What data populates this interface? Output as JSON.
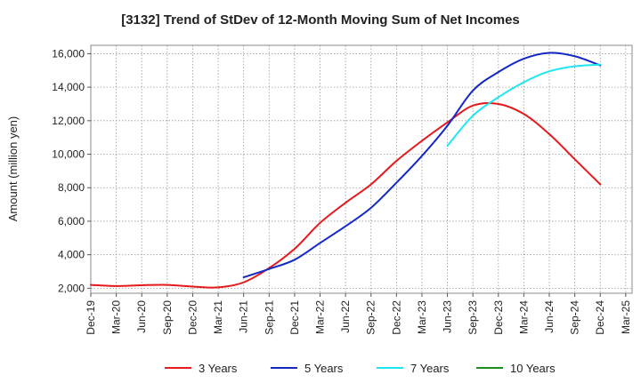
{
  "chart_data": {
    "type": "line",
    "title": "[3132]  Trend of StDev of 12-Month Moving Sum of Net Incomes",
    "xlabel": "",
    "ylabel": "Amount (million yen)",
    "ylim": [
      1700,
      16500
    ],
    "yticks": [
      2000,
      4000,
      6000,
      8000,
      10000,
      12000,
      14000,
      16000
    ],
    "ytick_labels": [
      "2,000",
      "4,000",
      "6,000",
      "8,000",
      "10,000",
      "12,000",
      "14,000",
      "16,000"
    ],
    "x_labels": [
      "Dec-19",
      "Mar-20",
      "Jun-20",
      "Sep-20",
      "Dec-20",
      "Mar-21",
      "Jun-21",
      "Sep-21",
      "Dec-21",
      "Mar-22",
      "Jun-22",
      "Sep-22",
      "Dec-22",
      "Mar-23",
      "Jun-23",
      "Sep-23",
      "Dec-23",
      "Mar-24",
      "Jun-24",
      "Sep-24",
      "Dec-24",
      "Mar-25"
    ],
    "grid": true,
    "legend_position": "bottom",
    "series": [
      {
        "name": "3 Years",
        "color": "#e41a1c",
        "x": [
          "Dec-19",
          "Mar-20",
          "Jun-20",
          "Sep-20",
          "Dec-20",
          "Mar-21",
          "Jun-21",
          "Sep-21",
          "Dec-21",
          "Mar-22",
          "Jun-22",
          "Sep-22",
          "Dec-22",
          "Mar-23",
          "Jun-23",
          "Sep-23",
          "Dec-23",
          "Mar-24",
          "Jun-24",
          "Sep-24",
          "Dec-24"
        ],
        "values": [
          2200,
          2130,
          2180,
          2200,
          2100,
          2050,
          2350,
          3200,
          4350,
          5900,
          7100,
          8200,
          9600,
          10800,
          11900,
          12900,
          13000,
          12400,
          11200,
          9700,
          8200
        ]
      },
      {
        "name": "5 Years",
        "color": "#1428c8",
        "x": [
          "Jun-21",
          "Sep-21",
          "Dec-21",
          "Mar-22",
          "Jun-22",
          "Sep-22",
          "Dec-22",
          "Mar-23",
          "Jun-23",
          "Sep-23",
          "Dec-23",
          "Mar-24",
          "Jun-24",
          "Sep-24",
          "Dec-24"
        ],
        "values": [
          2650,
          3150,
          3700,
          4700,
          5700,
          6800,
          8300,
          9900,
          11700,
          13800,
          14900,
          15700,
          16050,
          15850,
          15300
        ]
      },
      {
        "name": "7 Years",
        "color": "#1ee6f0",
        "x": [
          "Jun-23",
          "Sep-23",
          "Dec-23",
          "Mar-24",
          "Jun-24",
          "Sep-24",
          "Dec-24"
        ],
        "values": [
          10500,
          12300,
          13400,
          14300,
          14950,
          15250,
          15350
        ]
      },
      {
        "name": "10 Years",
        "color": "#1f8c1f",
        "x": [],
        "values": []
      }
    ]
  }
}
